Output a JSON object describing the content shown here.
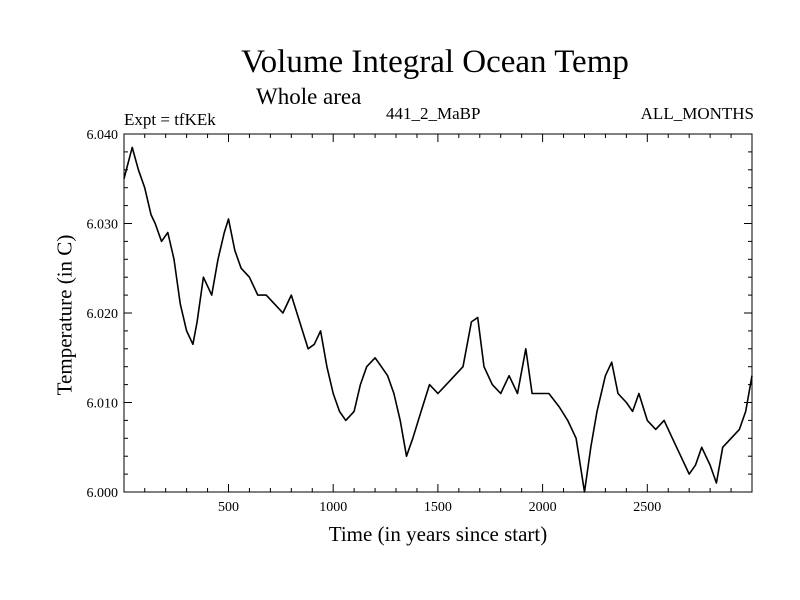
{
  "header": {
    "title": "Volume Integral Ocean Temp",
    "subtitle": "Whole area",
    "expt": "Expt = tfKEk",
    "run": "441_2_MaBP",
    "months": "ALL_MONTHS"
  },
  "chart_data": {
    "type": "line",
    "title": "Volume Integral Ocean Temp",
    "subtitle": "Whole area",
    "xlabel": "Time (in years since start)",
    "ylabel": "Temperature (in C)",
    "xlim": [
      1,
      3000
    ],
    "ylim": [
      6.0,
      6.04
    ],
    "xticks": [
      500,
      1000,
      1500,
      2000,
      2500
    ],
    "xtick_labels": [
      "500",
      "1000",
      "1500",
      "2000",
      "2500"
    ],
    "yticks": [
      6.0,
      6.01,
      6.02,
      6.03,
      6.04
    ],
    "ytick_labels": [
      "6.000",
      "6.010",
      "6.020",
      "6.030",
      "6.040"
    ],
    "grid": false,
    "series": [
      {
        "color": "#000000",
        "x": [
          1,
          40,
          70,
          100,
          130,
          150,
          180,
          210,
          240,
          270,
          300,
          330,
          350,
          380,
          420,
          450,
          480,
          500,
          530,
          560,
          600,
          640,
          680,
          720,
          760,
          800,
          840,
          880,
          910,
          940,
          970,
          1000,
          1030,
          1060,
          1100,
          1130,
          1160,
          1200,
          1230,
          1260,
          1290,
          1320,
          1350,
          1380,
          1420,
          1460,
          1500,
          1540,
          1580,
          1620,
          1660,
          1690,
          1720,
          1760,
          1800,
          1840,
          1880,
          1920,
          1950,
          1990,
          2030,
          2080,
          2120,
          2160,
          2200,
          2230,
          2260,
          2300,
          2330,
          2360,
          2400,
          2430,
          2460,
          2500,
          2540,
          2580,
          2620,
          2660,
          2700,
          2730,
          2760,
          2800,
          2830,
          2860,
          2900,
          2940,
          2970,
          3000
        ],
        "y": [
          6.035,
          6.0385,
          6.036,
          6.034,
          6.031,
          6.03,
          6.028,
          6.029,
          6.026,
          6.021,
          6.018,
          6.0165,
          6.019,
          6.024,
          6.022,
          6.026,
          6.029,
          6.0305,
          6.027,
          6.025,
          6.024,
          6.022,
          6.022,
          6.021,
          6.02,
          6.022,
          6.019,
          6.016,
          6.0165,
          6.018,
          6.014,
          6.011,
          6.009,
          6.008,
          6.009,
          6.012,
          6.014,
          6.015,
          6.014,
          6.013,
          6.011,
          6.008,
          6.004,
          6.006,
          6.009,
          6.012,
          6.011,
          6.012,
          6.013,
          6.014,
          6.019,
          6.0195,
          6.014,
          6.012,
          6.011,
          6.013,
          6.011,
          6.016,
          6.011,
          6.011,
          6.011,
          6.0095,
          6.008,
          6.006,
          6.0,
          6.005,
          6.009,
          6.013,
          6.0145,
          6.011,
          6.01,
          6.009,
          6.011,
          6.008,
          6.007,
          6.008,
          6.006,
          6.004,
          6.002,
          6.003,
          6.005,
          6.003,
          6.001,
          6.005,
          6.006,
          6.007,
          6.009,
          6.013
        ]
      }
    ]
  }
}
